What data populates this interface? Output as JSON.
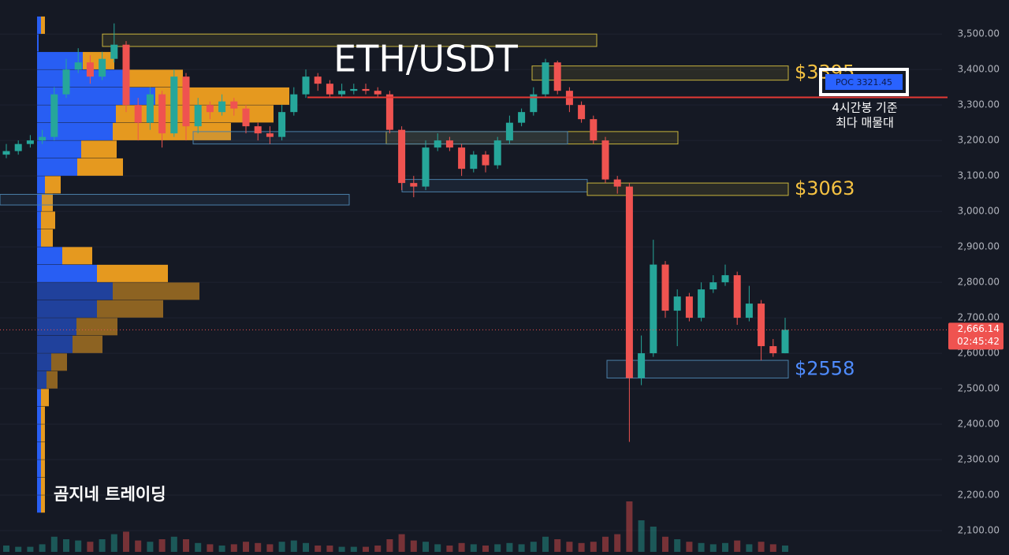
{
  "chart_data": {
    "type": "candlestick",
    "title": "ETH/USDT",
    "watermark": "곰지네 트레이딩",
    "ylim": [
      2040,
      3596
    ],
    "yticks": [
      {
        "value": 2100,
        "label": "2,100.00"
      },
      {
        "value": 2200,
        "label": "2,200.00"
      },
      {
        "value": 2300,
        "label": "2,300.00"
      },
      {
        "value": 2400,
        "label": "2,400.00"
      },
      {
        "value": 2500,
        "label": "2,500.00"
      },
      {
        "value": 2600,
        "label": "2,600.00"
      },
      {
        "value": 2700,
        "label": "2,700.00"
      },
      {
        "value": 2800,
        "label": "2,800.00"
      },
      {
        "value": 2900,
        "label": "2,900.00"
      },
      {
        "value": 3000,
        "label": "3,000.00"
      },
      {
        "value": 3100,
        "label": "3,100.00"
      },
      {
        "value": 3200,
        "label": "3,200.00"
      },
      {
        "value": 3300,
        "label": "3,300.00"
      },
      {
        "value": 3400,
        "label": "3,400.00"
      },
      {
        "value": 3500,
        "label": "3,500.00"
      }
    ],
    "up_color": "#26a69a",
    "down_color": "#ef5350",
    "open": [
      3160,
      3170,
      3190,
      3200,
      3210,
      3330,
      3400,
      3420,
      3380,
      3430,
      3470,
      3300,
      3250,
      3330,
      3220,
      3380,
      3240,
      3300,
      3280,
      3310,
      3290,
      3240,
      3220,
      3210,
      3280,
      3330,
      3380,
      3360,
      3330,
      3340,
      3345,
      3340,
      3330,
      3230,
      3080,
      3070,
      3180,
      3200,
      3180,
      3120,
      3160,
      3130,
      3200,
      3250,
      3280,
      3330,
      3420,
      3340,
      3300,
      3260,
      3200,
      3090,
      3070,
      2530,
      2600,
      2850,
      2720,
      2760,
      2700,
      2780,
      2800,
      2820,
      2700,
      2740,
      2620,
      2600
    ],
    "high": [
      3190,
      3200,
      3215,
      3230,
      3350,
      3430,
      3460,
      3440,
      3450,
      3530,
      3480,
      3320,
      3350,
      3340,
      3400,
      3390,
      3320,
      3310,
      3330,
      3320,
      3300,
      3250,
      3240,
      3300,
      3350,
      3400,
      3390,
      3370,
      3360,
      3360,
      3360,
      3350,
      3340,
      3240,
      3100,
      3200,
      3220,
      3210,
      3190,
      3170,
      3170,
      3210,
      3270,
      3290,
      3350,
      3430,
      3425,
      3350,
      3310,
      3270,
      3210,
      3100,
      3080,
      2650,
      2920,
      2860,
      2780,
      2770,
      2800,
      2820,
      2850,
      2830,
      2790,
      2750,
      2640,
      2700
    ],
    "low": [
      3150,
      3160,
      3180,
      3190,
      3200,
      3320,
      3390,
      3360,
      3370,
      3420,
      3280,
      3200,
      3230,
      3180,
      3210,
      3200,
      3220,
      3260,
      3270,
      3270,
      3220,
      3200,
      3190,
      3200,
      3270,
      3320,
      3340,
      3320,
      3320,
      3330,
      3330,
      3320,
      3220,
      3060,
      3040,
      3060,
      3170,
      3170,
      3100,
      3110,
      3110,
      3120,
      3190,
      3240,
      3270,
      3320,
      3330,
      3280,
      3250,
      3190,
      3080,
      3050,
      2350,
      2510,
      2590,
      2700,
      2620,
      2690,
      2690,
      2770,
      2790,
      2680,
      2690,
      2580,
      2590,
      2600
    ],
    "close": [
      3170,
      3190,
      3200,
      3210,
      3330,
      3400,
      3420,
      3380,
      3430,
      3470,
      3300,
      3250,
      3330,
      3220,
      3380,
      3240,
      3300,
      3280,
      3310,
      3290,
      3240,
      3220,
      3210,
      3280,
      3330,
      3380,
      3360,
      3330,
      3340,
      3345,
      3340,
      3330,
      3230,
      3080,
      3070,
      3180,
      3200,
      3180,
      3120,
      3160,
      3130,
      3200,
      3250,
      3280,
      3330,
      3420,
      3340,
      3300,
      3260,
      3200,
      3090,
      3070,
      2530,
      2600,
      2850,
      2720,
      2760,
      2700,
      2780,
      2800,
      2820,
      2700,
      2740,
      2620,
      2600,
      2666.14
    ],
    "volume": [
      5,
      4,
      4,
      6,
      12,
      10,
      9,
      8,
      10,
      14,
      16,
      9,
      8,
      10,
      12,
      10,
      7,
      6,
      5,
      6,
      8,
      7,
      6,
      8,
      9,
      7,
      5,
      5,
      4,
      4,
      4,
      5,
      10,
      14,
      9,
      8,
      6,
      5,
      7,
      6,
      5,
      6,
      7,
      6,
      8,
      12,
      10,
      8,
      7,
      8,
      12,
      14,
      40,
      25,
      20,
      12,
      10,
      8,
      7,
      6,
      7,
      9,
      6,
      8,
      6,
      5
    ],
    "volume_profile": {
      "prices": [
        3525,
        3475,
        3425,
        3375,
        3325,
        3275,
        3225,
        3175,
        3125,
        3075,
        3025,
        2975,
        2925,
        2875,
        2825,
        2775,
        2725,
        2675,
        2625,
        2575,
        2525,
        2475,
        2425,
        2375,
        2325,
        2275,
        2225,
        2175
      ],
      "buy": [
        5,
        2,
        58,
        110,
        150,
        100,
        96,
        56,
        51,
        10,
        6,
        5,
        5,
        32,
        76,
        96,
        76,
        50,
        45,
        18,
        12,
        5,
        5,
        5,
        5,
        5,
        5,
        5
      ],
      "sell": [
        5,
        0,
        40,
        75,
        170,
        200,
        150,
        45,
        58,
        20,
        14,
        18,
        15,
        38,
        90,
        110,
        84,
        52,
        38,
        20,
        14,
        10,
        5,
        5,
        5,
        5,
        5,
        5
      ],
      "buy_color": "#2962ff",
      "sell_color": "#f0a020"
    },
    "zones": [
      {
        "low": 3465,
        "high": 3500,
        "color": "#c8b43c"
      },
      {
        "low": 3370,
        "high": 3410,
        "color": "#c8b43c",
        "label": "$3395",
        "label_color": "#f5c242"
      },
      {
        "low": 3190,
        "high": 3225,
        "color": "#c8b43c"
      },
      {
        "low": 3190,
        "high": 3225,
        "color": "#4a7fa8"
      },
      {
        "low": 3055,
        "high": 3090,
        "color": "#4a7fa8"
      },
      {
        "low": 3045,
        "high": 3080,
        "color": "#c8b43c",
        "label": "$3063",
        "label_color": "#f5c242"
      },
      {
        "low": 3018,
        "high": 3048,
        "color": "#4a7fa8"
      },
      {
        "low": 2530,
        "high": 2580,
        "color": "#4a7fa8",
        "label": "$2558",
        "label_color": "#4f8cff"
      }
    ],
    "poc": 3321.45,
    "poc_label": "POC 3321.45",
    "poc_color": "#e53935",
    "poc_note": [
      "4시간봉 기준",
      "최다 매물대"
    ],
    "last_price": {
      "value": 2666.14,
      "label": "2,666.14"
    },
    "countdown": "02:45:42"
  }
}
